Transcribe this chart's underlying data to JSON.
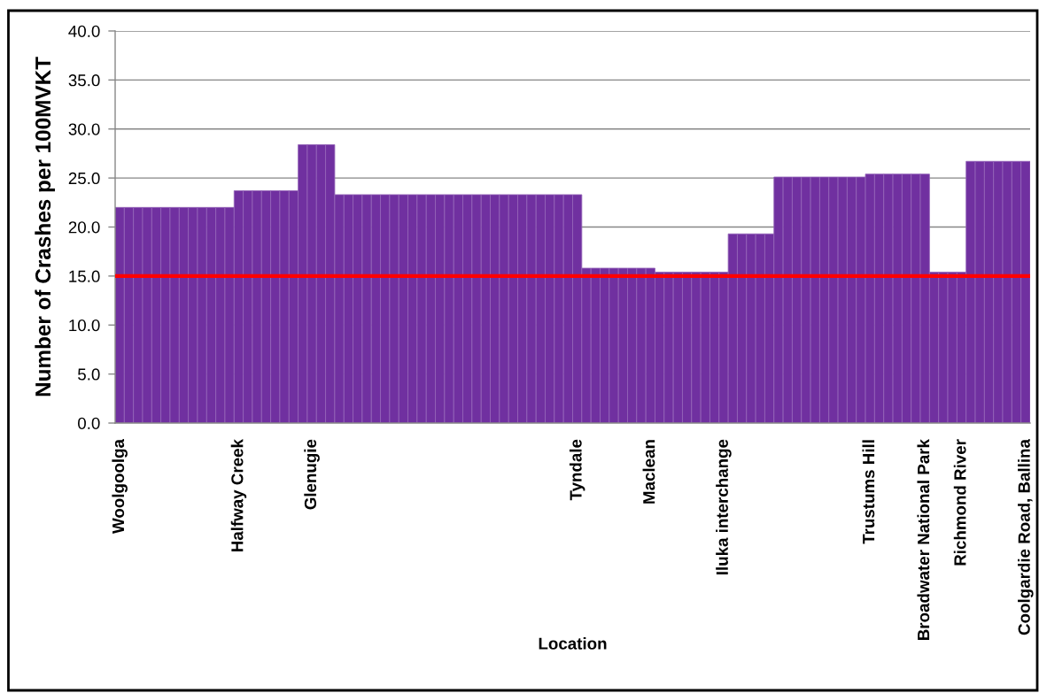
{
  "chart_data": {
    "type": "bar",
    "xlabel": "Location",
    "ylabel": "Number of Crashes per 100MVKT",
    "categories": [
      "Woolgoolga",
      null,
      null,
      null,
      null,
      null,
      null,
      null,
      null,
      null,
      null,
      null,
      null,
      "Halfway Creek",
      null,
      null,
      null,
      null,
      null,
      null,
      null,
      "Glenugie",
      null,
      null,
      null,
      null,
      null,
      null,
      null,
      null,
      null,
      null,
      null,
      null,
      null,
      null,
      null,
      null,
      null,
      null,
      null,
      null,
      null,
      null,
      null,
      null,
      null,
      null,
      null,
      null,
      "Tyndale",
      null,
      null,
      null,
      null,
      null,
      null,
      null,
      "Maclean",
      null,
      null,
      null,
      null,
      null,
      null,
      null,
      "Iluka interchange",
      null,
      null,
      null,
      null,
      null,
      null,
      null,
      null,
      null,
      null,
      null,
      null,
      null,
      null,
      null,
      "Trustums Hill",
      null,
      null,
      null,
      null,
      null,
      "Broadwater National Park",
      null,
      null,
      null,
      "Richmond River",
      null,
      null,
      null,
      null,
      null,
      null,
      "Coolgardie Road, Ballina"
    ],
    "values": [
      22.0,
      22.0,
      22.0,
      22.0,
      22.0,
      22.0,
      22.0,
      22.0,
      22.0,
      22.0,
      22.0,
      22.0,
      22.0,
      23.7,
      23.7,
      23.7,
      23.7,
      23.7,
      23.7,
      23.7,
      28.4,
      28.4,
      28.4,
      28.4,
      23.3,
      23.3,
      23.3,
      23.3,
      23.3,
      23.3,
      23.3,
      23.3,
      23.3,
      23.3,
      23.3,
      23.3,
      23.3,
      23.3,
      23.3,
      23.3,
      23.3,
      23.3,
      23.3,
      23.3,
      23.3,
      23.3,
      23.3,
      23.3,
      23.3,
      23.3,
      23.3,
      15.8,
      15.8,
      15.8,
      15.8,
      15.8,
      15.8,
      15.8,
      15.8,
      15.4,
      15.4,
      15.4,
      15.4,
      15.4,
      15.4,
      15.4,
      15.4,
      19.3,
      19.3,
      19.3,
      19.3,
      19.3,
      25.1,
      25.1,
      25.1,
      25.1,
      25.1,
      25.1,
      25.1,
      25.1,
      25.1,
      25.1,
      25.4,
      25.4,
      25.4,
      25.4,
      25.4,
      25.4,
      25.4,
      15.4,
      15.4,
      15.4,
      15.4,
      26.7,
      26.7,
      26.7,
      26.7,
      26.7,
      26.7,
      26.7
    ],
    "color": "#7030a0",
    "ylim": [
      0,
      40
    ],
    "yticks": [
      {
        "value": 0,
        "label": "0.0"
      },
      {
        "value": 5,
        "label": "5.0"
      },
      {
        "value": 10,
        "label": "10.0"
      },
      {
        "value": 15,
        "label": "15.0"
      },
      {
        "value": 20,
        "label": "20.0"
      },
      {
        "value": 25,
        "label": "25.0"
      },
      {
        "value": 30,
        "label": "30.0"
      },
      {
        "value": 35,
        "label": "35.0"
      },
      {
        "value": 40,
        "label": "40.0"
      }
    ],
    "grid": "y",
    "ref_lines": [
      {
        "axis": "y",
        "value": 15,
        "color": "#ff0000",
        "line_style": "solid"
      }
    ]
  }
}
